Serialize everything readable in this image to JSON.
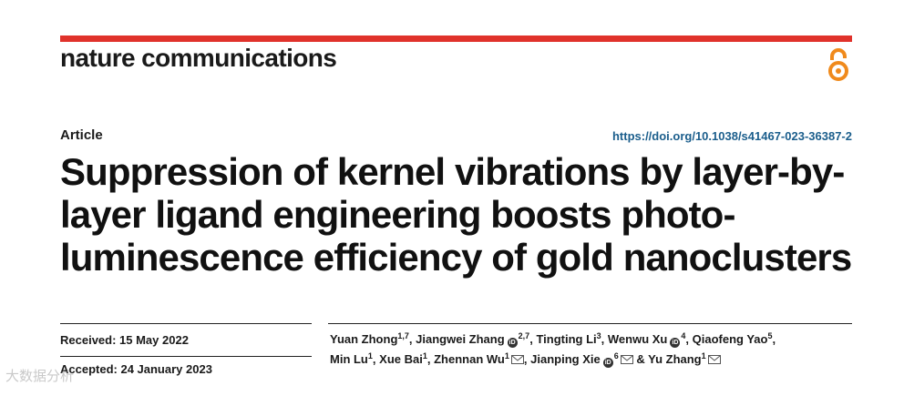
{
  "colors": {
    "accent_red": "#e0322b",
    "oa_orange": "#f08a1c",
    "doi_blue": "#1b5e8c"
  },
  "header": {
    "journal_name": "nature communications",
    "open_access_icon": "open-access-icon"
  },
  "meta": {
    "article_type": "Article",
    "doi": "https://doi.org/10.1038/s41467-023-36387-2"
  },
  "title": {
    "lines": [
      "Suppression of kernel vibrations by layer-by-",
      "layer ligand engineering boosts photo-",
      "luminescence efficiency of gold nanoclusters"
    ]
  },
  "dates": {
    "received": "Received: 15 May 2022",
    "accepted": "Accepted: 24 January 2023"
  },
  "authors": [
    {
      "name": "Yuan Zhong",
      "aff": "1,7",
      "orcid": false,
      "email": false,
      "prefix": "",
      "suffix": ","
    },
    {
      "name": "Jiangwei Zhang",
      "aff": "2,7",
      "orcid": true,
      "email": false,
      "prefix": " ",
      "suffix": ","
    },
    {
      "name": "Tingting Li",
      "aff": "3",
      "orcid": false,
      "email": false,
      "prefix": " ",
      "suffix": ","
    },
    {
      "name": "Wenwu Xu",
      "aff": "4",
      "orcid": true,
      "email": false,
      "prefix": " ",
      "suffix": ","
    },
    {
      "name": "Qiaofeng Yao",
      "aff": "5",
      "orcid": false,
      "email": false,
      "prefix": " ",
      "suffix": ","
    },
    {
      "name": "Min Lu",
      "aff": "1",
      "orcid": false,
      "email": false,
      "prefix": "",
      "suffix": ","
    },
    {
      "name": "Xue Bai",
      "aff": "1",
      "orcid": false,
      "email": false,
      "prefix": " ",
      "suffix": ","
    },
    {
      "name": "Zhennan Wu",
      "aff": "1",
      "orcid": false,
      "email": true,
      "prefix": " ",
      "suffix": ","
    },
    {
      "name": "Jianping Xie",
      "aff": "6",
      "orcid": true,
      "email": true,
      "prefix": " ",
      "suffix": ""
    },
    {
      "name": "Yu Zhang",
      "aff": "1",
      "orcid": false,
      "email": true,
      "prefix": " & ",
      "suffix": ""
    }
  ],
  "author_line_breaks": [
    5
  ],
  "watermark": "大数据分析"
}
